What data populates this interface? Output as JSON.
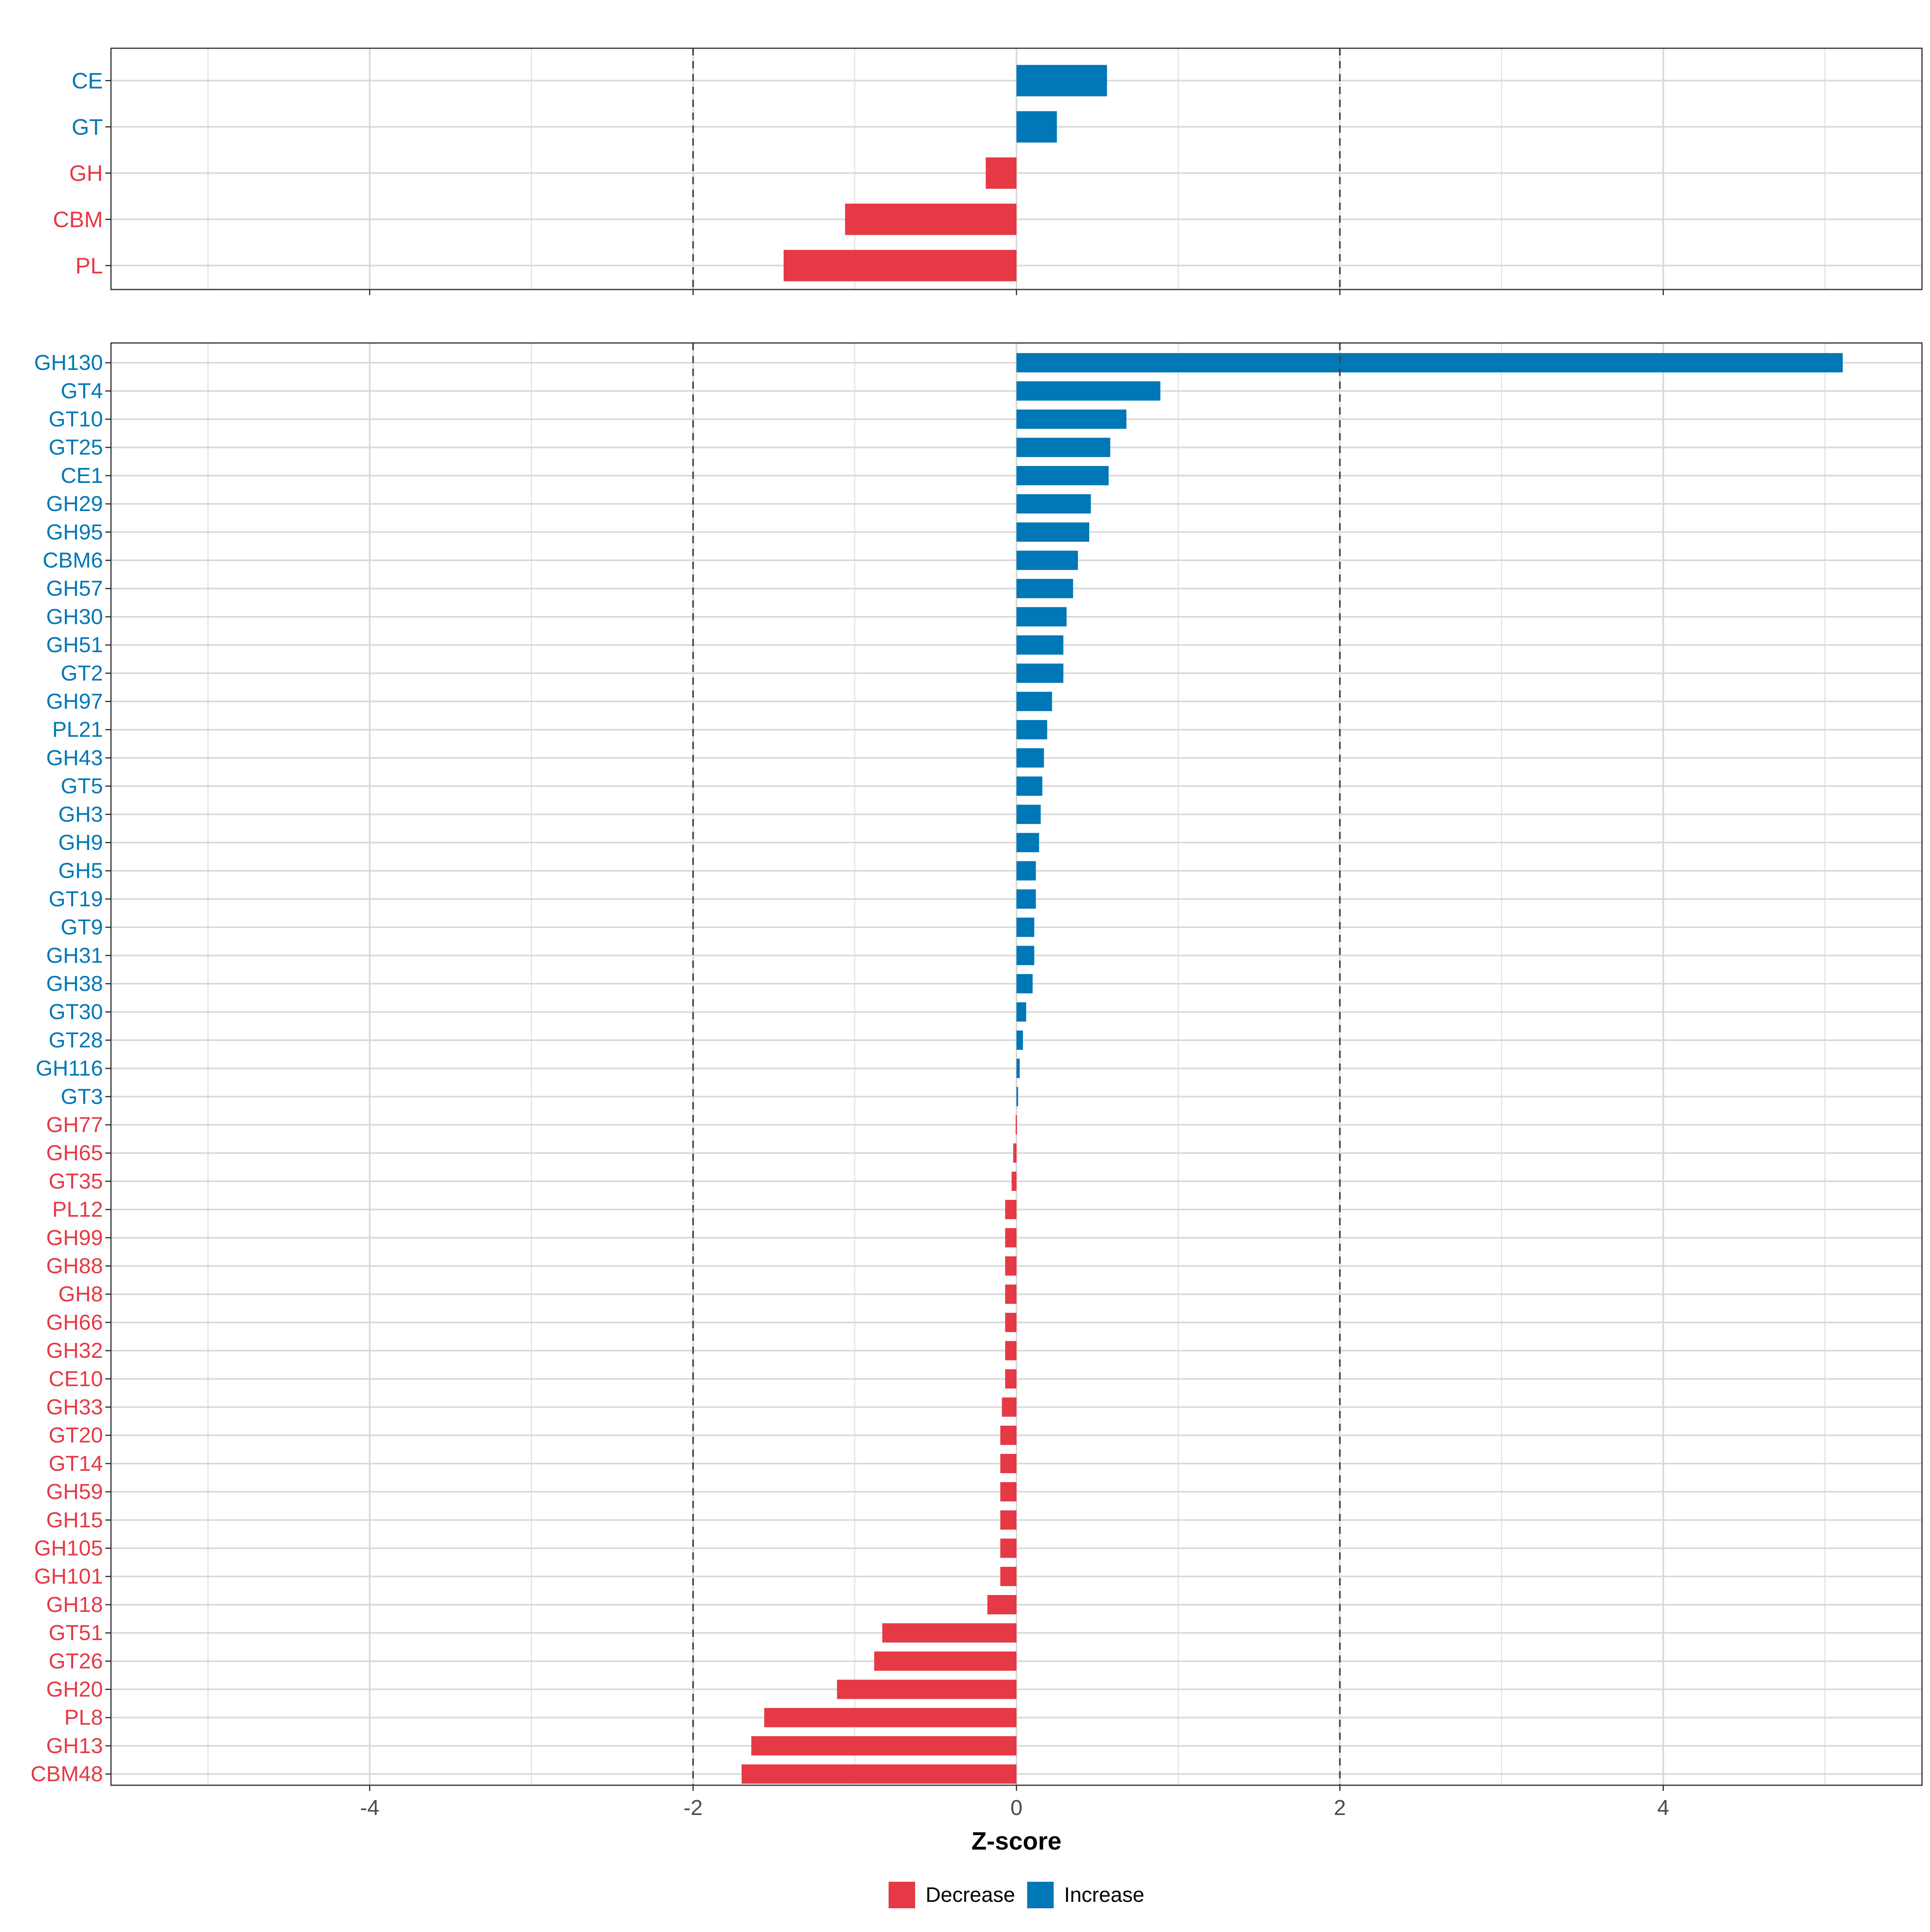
{
  "colors": {
    "decrease": "#E63946",
    "increase": "#0077B6",
    "grid": "#d9d9d9",
    "panel_border": "#333333",
    "reference_line": "#444444",
    "tick_text": "#4d4d4d",
    "title_text": "#000000"
  },
  "chart_data": [
    {
      "id": "top-panel",
      "type": "bar",
      "orientation": "horizontal",
      "xlim": [
        -5.6,
        5.6
      ],
      "x_ticks": [
        -4,
        -2,
        0,
        2,
        4
      ],
      "reference_lines": [
        -2,
        2
      ],
      "show_x_tick_labels": false,
      "categories": [
        "CE",
        "GT",
        "GH",
        "CBM",
        "PL"
      ],
      "values": [
        0.56,
        0.25,
        -0.19,
        -1.06,
        -1.44
      ],
      "direction": [
        "Increase",
        "Increase",
        "Decrease",
        "Decrease",
        "Decrease"
      ]
    },
    {
      "id": "bottom-panel",
      "type": "bar",
      "orientation": "horizontal",
      "xlim": [
        -5.6,
        5.6
      ],
      "x_ticks": [
        -4,
        -2,
        0,
        2,
        4
      ],
      "x_tick_labels": [
        "-4",
        "-2",
        "0",
        "2",
        "4"
      ],
      "reference_lines": [
        -2,
        2
      ],
      "show_x_tick_labels": true,
      "xlabel": "Z-score",
      "categories": [
        "GH130",
        "GT4",
        "GT10",
        "GT25",
        "CE1",
        "GH29",
        "GH95",
        "CBM6",
        "GH57",
        "GH30",
        "GH51",
        "GT2",
        "GH97",
        "PL21",
        "GH43",
        "GT5",
        "GH3",
        "GH9",
        "GH5",
        "GT19",
        "GT9",
        "GH31",
        "GH38",
        "GT30",
        "GT28",
        "GH116",
        "GT3",
        "GH77",
        "GH65",
        "GT35",
        "PL12",
        "GH99",
        "GH88",
        "GH8",
        "GH66",
        "GH32",
        "CE10",
        "GH33",
        "GT20",
        "GT14",
        "GH59",
        "GH15",
        "GH105",
        "GH101",
        "GH18",
        "GT51",
        "GT26",
        "GH20",
        "PL8",
        "GH13",
        "CBM48"
      ],
      "values": [
        5.11,
        0.89,
        0.68,
        0.58,
        0.57,
        0.46,
        0.45,
        0.38,
        0.35,
        0.31,
        0.29,
        0.29,
        0.22,
        0.19,
        0.17,
        0.16,
        0.15,
        0.14,
        0.12,
        0.12,
        0.11,
        0.11,
        0.1,
        0.06,
        0.04,
        0.02,
        0.01,
        -0.005,
        -0.02,
        -0.03,
        -0.07,
        -0.07,
        -0.07,
        -0.07,
        -0.07,
        -0.07,
        -0.07,
        -0.09,
        -0.1,
        -0.1,
        -0.1,
        -0.1,
        -0.1,
        -0.1,
        -0.18,
        -0.83,
        -0.88,
        -1.11,
        -1.56,
        -1.64,
        -1.7
      ],
      "direction": [
        "Increase",
        "Increase",
        "Increase",
        "Increase",
        "Increase",
        "Increase",
        "Increase",
        "Increase",
        "Increase",
        "Increase",
        "Increase",
        "Increase",
        "Increase",
        "Increase",
        "Increase",
        "Increase",
        "Increase",
        "Increase",
        "Increase",
        "Increase",
        "Increase",
        "Increase",
        "Increase",
        "Increase",
        "Increase",
        "Increase",
        "Increase",
        "Decrease",
        "Decrease",
        "Decrease",
        "Decrease",
        "Decrease",
        "Decrease",
        "Decrease",
        "Decrease",
        "Decrease",
        "Decrease",
        "Decrease",
        "Decrease",
        "Decrease",
        "Decrease",
        "Decrease",
        "Decrease",
        "Decrease",
        "Decrease",
        "Decrease",
        "Decrease",
        "Decrease",
        "Decrease",
        "Decrease",
        "Decrease"
      ]
    }
  ],
  "legend": {
    "position": "bottom",
    "items": [
      {
        "label": "Decrease",
        "color_key": "decrease"
      },
      {
        "label": "Increase",
        "color_key": "increase"
      }
    ]
  }
}
